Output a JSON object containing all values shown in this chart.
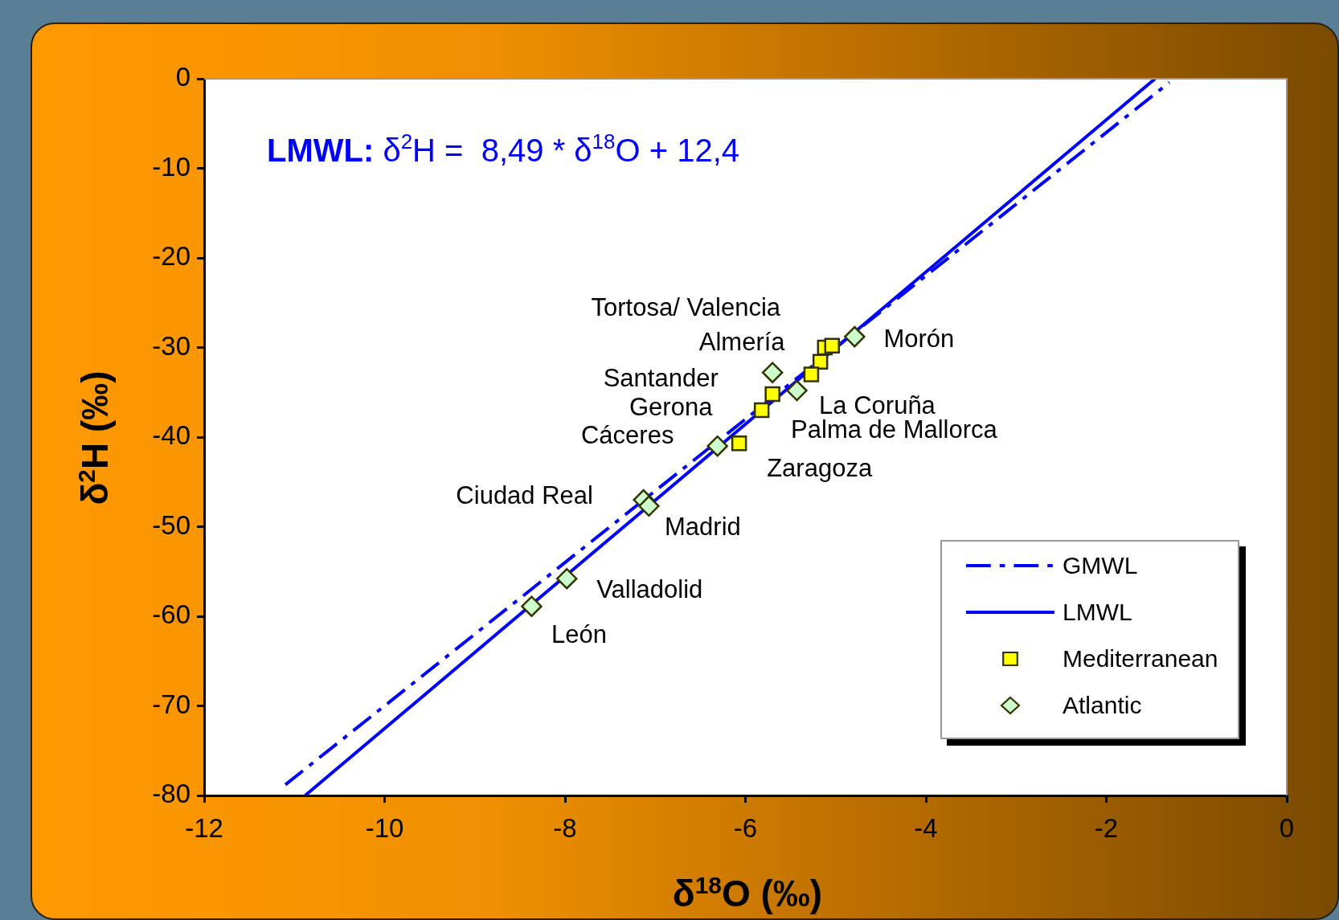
{
  "chart_data": {
    "type": "scatter",
    "xlabel": "δ$^{18}$O (‰)",
    "ylabel": "δ$^{2}$H (‰)",
    "xlim": [
      -12,
      0
    ],
    "xticks": [
      -12,
      -10,
      -8,
      -6,
      -4,
      -2,
      0
    ],
    "ylim": [
      -80,
      0
    ],
    "yticks": [
      -80,
      -70,
      -60,
      -50,
      -40,
      -30,
      -20,
      -10,
      0
    ],
    "grid": false,
    "legend": "bottom right",
    "series": [
      {
        "name": "GMWL",
        "type": "line",
        "color": "#0000ff",
        "line_style": "dashed",
        "marker": "none",
        "x": [
          -11.1,
          -1.3
        ],
        "values": [
          -78.8,
          -0.4
        ]
      },
      {
        "name": "LMWL",
        "type": "line",
        "color": "#0000ff",
        "line_style": "solid",
        "marker": "none",
        "x": [
          -10.88,
          -1.46
        ],
        "values": [
          -80,
          0
        ]
      },
      {
        "name": "Mediterranean",
        "type": "scatter",
        "color": "#ffff00",
        "marker": "square",
        "x": [
          -5.12,
          -5.04,
          -5.17,
          -5.27,
          -5.7,
          -5.82,
          -6.07
        ],
        "values": [
          -30,
          -29.8,
          -31.6,
          -33,
          -35.2,
          -37,
          -40.7
        ]
      },
      {
        "name": "Atlantic",
        "type": "scatter",
        "color": "#ccffcc",
        "marker": "diamond",
        "x": [
          -4.79,
          -5.7,
          -5.43,
          -6.31,
          -7.13,
          -7.07,
          -7.98,
          -8.37
        ],
        "values": [
          -28.8,
          -32.8,
          -34.8,
          -41,
          -47,
          -47.7,
          -55.8,
          -58.9
        ]
      }
    ],
    "annotations": [
      "LMWL: δ$^{2}$H =  8,49 * δ$^{18}$O + 12,4",
      {
        "text": "Tortosa/ Valencia",
        "x": -5.04,
        "y": -29.8
      },
      {
        "text": "Almería",
        "x": -5.7,
        "y": -32.8
      },
      {
        "text": "Santander",
        "x": -5.7,
        "y": -35.2
      },
      {
        "text": "Gerona",
        "x": -5.82,
        "y": -37
      },
      {
        "text": "Cáceres",
        "x": -6.31,
        "y": -41
      },
      {
        "text": "Ciudad Real",
        "x": -7.13,
        "y": -47
      },
      {
        "text": "Madrid",
        "x": -7.07,
        "y": -47.7
      },
      {
        "text": "Valladolid",
        "x": -7.98,
        "y": -55.8
      },
      {
        "text": "León",
        "x": -8.37,
        "y": -58.9
      },
      {
        "text": "Zaragoza",
        "x": -6.07,
        "y": -40.7
      },
      {
        "text": "Palma de Mallorca",
        "x": -5.27,
        "y": -33
      },
      {
        "text": "La Coruña",
        "x": -5.43,
        "y": -34.8
      },
      {
        "text": "Morón",
        "x": -4.79,
        "y": -28.8
      }
    ]
  }
}
